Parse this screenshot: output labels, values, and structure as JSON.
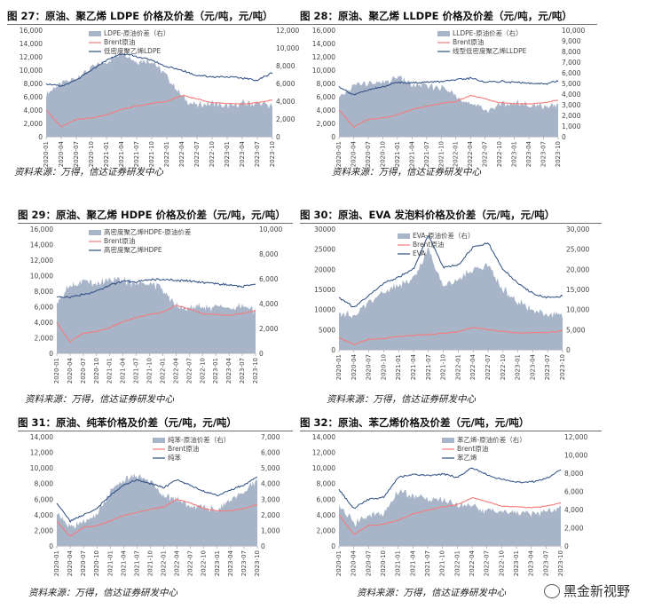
{
  "watermark": "黑金新视野",
  "dates": [
    "2020-01",
    "2020-04",
    "2020-07",
    "2020-10",
    "2021-01",
    "2021-04",
    "2021-07",
    "2021-10",
    "2022-01",
    "2022-04",
    "2022-07",
    "2022-10",
    "2023-01",
    "2023-04",
    "2023-07",
    "2023-10"
  ],
  "charts": [
    {
      "title": "图 27：原油、聚乙烯 LDPE 价格及价差（元/吨，元/吨）",
      "source": "资料来源：万得，信达证券研发中心",
      "chart_data": {
        "type": "area+line",
        "x": [
          "2020-01",
          "2020-04",
          "2020-07",
          "2020-10",
          "2021-01",
          "2021-04",
          "2021-07",
          "2021-10",
          "2022-01",
          "2022-04",
          "2022-07",
          "2022-10",
          "2023-01",
          "2023-04",
          "2023-07",
          "2023-10"
        ],
        "yticks_left": [
          "0",
          "2,000",
          "4,000",
          "6,000",
          "8,000",
          "10,000",
          "12,000",
          "14,000",
          "16,000"
        ],
        "yticks_right": [
          "0",
          "2,000",
          "4,000",
          "6,000",
          "8,000",
          "10,000",
          "12,000"
        ],
        "ylim_left": [
          0,
          16000
        ],
        "ylim_right": [
          0,
          12000
        ],
        "series": [
          {
            "name": "LDPE-原油价差（右）",
            "type": "area",
            "axis": "right",
            "values": [
              4800,
              6000,
              6600,
              7800,
              8500,
              9500,
              8500,
              8600,
              6800,
              4500,
              3500,
              3800,
              3300,
              3800,
              3700,
              3500
            ]
          },
          {
            "name": "Brent原油",
            "type": "line",
            "axis": "left",
            "values": [
              4000,
              1500,
              2600,
              2800,
              3300,
              4100,
              4600,
              5000,
              5300,
              6200,
              5700,
              5100,
              5000,
              4900,
              5100,
              5500
            ]
          },
          {
            "name": "低密度聚乙烯LDPE",
            "type": "line",
            "axis": "left",
            "values": [
              8000,
              7500,
              8500,
              10000,
              11500,
              12500,
              12000,
              11500,
              10500,
              10000,
              9200,
              9000,
              9000,
              8800,
              8500,
              9600
            ]
          }
        ],
        "colors": {
          "area": "#a8b4c8",
          "brent": "#f47c7c",
          "product": "#2c4c82"
        }
      }
    },
    {
      "title": "图 28：原油、聚乙烯 LLDPE 价格及价差（元/吨，元/吨）",
      "source": "资料来源：万得，信达证券研发中心",
      "chart_data": {
        "type": "area+line",
        "x": [
          "2020-01",
          "2020-04",
          "2020-07",
          "2020-10",
          "2021-01",
          "2021-04",
          "2021-07",
          "2021-10",
          "2022-01",
          "2022-04",
          "2022-07",
          "2022-10",
          "2023-01",
          "2023-04",
          "2023-07",
          "2023-10"
        ],
        "yticks_left": [
          "0",
          "2,000",
          "4,000",
          "6,000",
          "8,000",
          "10,000",
          "12,000",
          "14,000",
          "16,000"
        ],
        "yticks_right": [
          "0",
          "1,000",
          "2,000",
          "3,000",
          "4,000",
          "5,000",
          "6,000",
          "7,000",
          "8,000",
          "9,000",
          "10,000"
        ],
        "ylim_left": [
          0,
          16000
        ],
        "ylim_right": [
          0,
          10000
        ],
        "series": [
          {
            "name": "LLDPE-原油价差（右）",
            "type": "area",
            "axis": "right",
            "values": [
              3500,
              4800,
              5000,
              5000,
              5600,
              4900,
              4700,
              4600,
              3900,
              3000,
              2500,
              3000,
              3200,
              3000,
              2800,
              3000
            ]
          },
          {
            "name": "Brent原油",
            "type": "line",
            "axis": "left",
            "values": [
              4000,
              1500,
              2600,
              2800,
              3300,
              4100,
              4600,
              5000,
              5300,
              6200,
              5700,
              5100,
              5000,
              4900,
              5100,
              5500
            ]
          },
          {
            "name": "线型低密度聚乙烯LLDPE",
            "type": "line",
            "axis": "left",
            "values": [
              7500,
              6300,
              7000,
              7500,
              8200,
              8100,
              8200,
              8300,
              8500,
              8800,
              8200,
              8300,
              8200,
              8000,
              7900,
              8400
            ]
          }
        ],
        "colors": {
          "area": "#a8b4c8",
          "brent": "#f47c7c",
          "product": "#2c4c82"
        }
      }
    },
    {
      "title": "图 29：原油、聚乙烯 HDPE 价格及价差（元/吨，元/吨）",
      "source": "资料来源：万得，信达证券研发中心",
      "chart_data": {
        "type": "area+line",
        "x": [
          "2020-01",
          "2020-04",
          "2020-07",
          "2020-10",
          "2021-01",
          "2021-04",
          "2021-07",
          "2021-10",
          "2022-01",
          "2022-04",
          "2022-07",
          "2022-10",
          "2023-01",
          "2023-04",
          "2023-07",
          "2023-10"
        ],
        "yticks_left": [
          "0",
          "2,000",
          "4,000",
          "6,000",
          "8,000",
          "10,000",
          "12,000",
          "14,000",
          "16,000"
        ],
        "yticks_right": [
          "0",
          "2,000",
          "4,000",
          "6,000",
          "8,000",
          "10,000"
        ],
        "ylim_left": [
          0,
          16000
        ],
        "ylim_right": [
          0,
          10000
        ],
        "series": [
          {
            "name": "高密度聚乙烯HDPE-原油价差",
            "type": "area",
            "axis": "right",
            "values": [
              4200,
              5500,
              5800,
              5700,
              6000,
              5800,
              5600,
              5700,
              5100,
              4000,
              3600,
              3800,
              3700,
              3800,
              3700,
              3400
            ]
          },
          {
            "name": "Brent原油",
            "type": "line",
            "axis": "left",
            "values": [
              4000,
              1500,
              2600,
              2800,
              3300,
              4100,
              4600,
              5000,
              5300,
              6200,
              5700,
              5100,
              5000,
              4900,
              5100,
              5500
            ]
          },
          {
            "name": "高密度聚乙烯HDPE",
            "type": "line",
            "axis": "left",
            "values": [
              7300,
              7200,
              7600,
              8000,
              8800,
              9300,
              9200,
              9500,
              9500,
              9400,
              9300,
              9100,
              9000,
              8800,
              8600,
              8900
            ]
          }
        ],
        "colors": {
          "area": "#a8b4c8",
          "brent": "#f47c7c",
          "product": "#2c4c82"
        }
      }
    },
    {
      "title": "图 30：原油、EVA 发泡料价格及价差（元/吨，元/吨）",
      "source": "资料来源：万得，信达证券研发中心",
      "chart_data": {
        "type": "area+line",
        "x": [
          "2020-01",
          "2020-04",
          "2020-07",
          "2020-10",
          "2021-01",
          "2021-04",
          "2021-07",
          "2021-10",
          "2022-01",
          "2022-04",
          "2022-07",
          "2022-10",
          "2023-01",
          "2023-04",
          "2023-07",
          "2023-10"
        ],
        "yticks_left": [
          "0",
          "5000",
          "10000",
          "15000",
          "20000",
          "25000",
          "30000"
        ],
        "yticks_right": [
          "0",
          "5,000",
          "10,000",
          "15,000",
          "20,000",
          "25,000",
          "30,000"
        ],
        "ylim_left": [
          0,
          30000
        ],
        "ylim_right": [
          0,
          30000
        ],
        "series": [
          {
            "name": "EVA-原油价差（右）",
            "type": "area",
            "axis": "right",
            "values": [
              9500,
              8000,
              12000,
              14500,
              16000,
              18000,
              25000,
              16000,
              17500,
              20000,
              21000,
              15000,
              12000,
              9500,
              9000,
              8500
            ]
          },
          {
            "name": "Brent原油",
            "type": "line",
            "axis": "left",
            "values": [
              3000,
              1300,
              2600,
              2800,
              3300,
              3600,
              3800,
              4100,
              4500,
              5500,
              5000,
              4500,
              4200,
              4200,
              4300,
              4800
            ]
          },
          {
            "name": "EVA",
            "type": "line",
            "axis": "left",
            "values": [
              13000,
              10500,
              13500,
              16500,
              18000,
              20000,
              28500,
              20500,
              21000,
              25500,
              26500,
              20000,
              16500,
              14000,
              13000,
              13300
            ]
          }
        ],
        "colors": {
          "area": "#a8b4c8",
          "brent": "#f47c7c",
          "product": "#2c4c82"
        }
      }
    },
    {
      "title": "图 31：原油、纯苯价格及价差（元/吨，元/吨）",
      "source": "资料来源：万得，信达证券研发中心",
      "chart_data": {
        "type": "area+line",
        "x": [
          "2020-01",
          "2020-04",
          "2020-07",
          "2020-10",
          "2021-01",
          "2021-04",
          "2021-07",
          "2021-10",
          "2022-01",
          "2022-04",
          "2022-07",
          "2022-10",
          "2023-01",
          "2023-04",
          "2023-07",
          "2023-10"
        ],
        "yticks_left": [
          "0",
          "2,000",
          "4,000",
          "6,000",
          "8,000",
          "10,000",
          "12,000",
          "14,000"
        ],
        "yticks_right": [
          "0",
          "1,000",
          "2,000",
          "3,000",
          "4,000",
          "5,000",
          "6,000",
          "7,000"
        ],
        "ylim_left": [
          0,
          14000
        ],
        "ylim_right": [
          0,
          7000
        ],
        "series": [
          {
            "name": "纯苯-原油价差（右）",
            "type": "area",
            "axis": "right",
            "values": [
              2000,
              1200,
              1500,
              2000,
              3500,
              4200,
              4500,
              4200,
              3200,
              3000,
              2500,
              2500,
              2300,
              3000,
              3500,
              4300
            ]
          },
          {
            "name": "Brent原油",
            "type": "line",
            "axis": "left",
            "values": [
              3200,
              1200,
              2400,
              2600,
              3200,
              3900,
              4300,
              4700,
              5000,
              6000,
              5500,
              4800,
              4500,
              4500,
              4800,
              5300
            ]
          },
          {
            "name": "纯苯",
            "type": "line",
            "axis": "left",
            "values": [
              5500,
              3200,
              4000,
              4800,
              6500,
              7800,
              8500,
              8000,
              7500,
              8500,
              7800,
              7000,
              6500,
              7200,
              7800,
              8800
            ]
          }
        ],
        "colors": {
          "area": "#a8b4c8",
          "brent": "#f47c7c"
        }
      }
    },
    {
      "title": "图 32：原油、苯乙烯价格及价差（元/吨，元/吨）",
      "source": "资料来源：万得，信达证券研发中心",
      "chart_data": {
        "type": "area+line",
        "x": [
          "2020-01",
          "2020-04",
          "2020-07",
          "2020-10",
          "2021-01",
          "2021-04",
          "2021-07",
          "2021-10",
          "2022-01",
          "2022-04",
          "2022-07",
          "2022-10",
          "2023-01",
          "2023-04",
          "2023-07",
          "2023-10"
        ],
        "yticks_left": [
          "0",
          "2,000",
          "4,000",
          "6,000",
          "8,000",
          "10,000",
          "12,000",
          "14,000"
        ],
        "yticks_right": [
          "0",
          "2,000",
          "4,000",
          "6,000",
          "8,000",
          "10,000",
          "12,000"
        ],
        "ylim_left": [
          0,
          14000
        ],
        "ylim_right": [
          0,
          12000
        ],
        "series": [
          {
            "name": "苯乙烯-原油价差（右）",
            "type": "area",
            "axis": "right",
            "values": [
              4500,
              2500,
              3500,
              3500,
              6000,
              5500,
              5200,
              5000,
              4500,
              4300,
              3800,
              3800,
              3600,
              3600,
              3800,
              4200
            ]
          },
          {
            "name": "Brent原油",
            "type": "line",
            "axis": "left",
            "values": [
              4000,
              1500,
              2600,
              2800,
              3300,
              4100,
              4600,
              5000,
              5300,
              6200,
              5700,
              5100,
              5000,
              4900,
              5100,
              5500
            ]
          },
          {
            "name": "苯乙烯",
            "type": "line",
            "axis": "left",
            "values": [
              7200,
              4800,
              6000,
              6200,
              8800,
              9200,
              9000,
              9200,
              8800,
              10000,
              9200,
              8500,
              8200,
              8200,
              8600,
              9800
            ]
          }
        ],
        "colors": {
          "area": "#a8b4c8",
          "brent": "#f47c7c",
          "product": "#2c4c82"
        }
      }
    }
  ]
}
